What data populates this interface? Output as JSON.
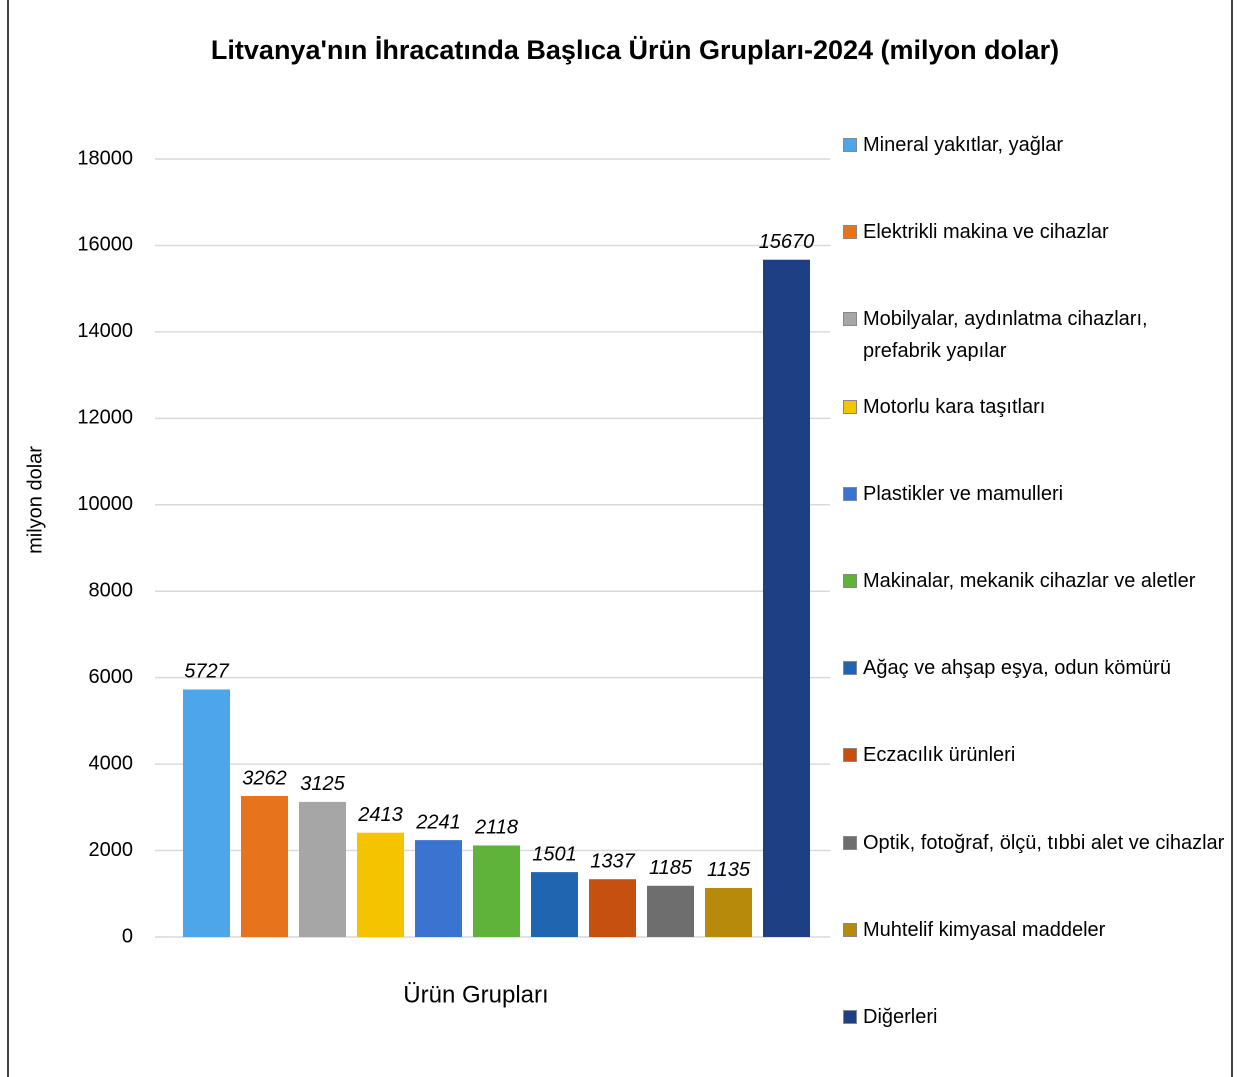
{
  "chart_data": {
    "type": "bar",
    "title": "Litvanya'nın İhracatında Başlıca Ürün Grupları-2024 (milyon dolar)",
    "y_label": "milyon dolar",
    "x_label": "Ürün Grupları",
    "categories": [
      null
    ],
    "series": [
      {
        "name": "Mineral yakıtlar, yağlar",
        "color": "#4da6ea",
        "values": [
          5727
        ]
      },
      {
        "name": "Elektrikli makina ve cihazlar",
        "color": "#e8731d",
        "values": [
          3262
        ]
      },
      {
        "name": "Mobilyalar, aydınlatma cihazları, prefabrik yapılar",
        "color": "#a6a6a6",
        "values": [
          3125
        ]
      },
      {
        "name": "Motorlu kara taşıtları",
        "color": "#f5c400",
        "values": [
          2413
        ]
      },
      {
        "name": "Plastikler ve mamulleri",
        "color": "#3a73d0",
        "values": [
          2241
        ]
      },
      {
        "name": "Makinalar, mekanik cihazlar ve aletler",
        "color": "#5fb33a",
        "values": [
          2118
        ]
      },
      {
        "name": "Ağaç ve ahşap eşya, odun kömürü",
        "color": "#1f65b0",
        "values": [
          1501
        ]
      },
      {
        "name": "Eczacılık ürünleri",
        "color": "#c5500f",
        "values": [
          1337
        ]
      },
      {
        "name": "Optik, fotoğraf, ölçü, tıbbi alet ve cihazlar",
        "color": "#6e6e6e",
        "values": [
          1185
        ]
      },
      {
        "name": "Muhtelif kimyasal maddeler",
        "color": "#b88a0c",
        "values": [
          1135
        ]
      },
      {
        "name": "Diğerleri",
        "color": "#1f3f85",
        "values": [
          15670
        ]
      }
    ],
    "ylim": [
      0,
      18000
    ],
    "yticks": [
      0,
      2000,
      4000,
      6000,
      8000,
      10000,
      12000,
      14000,
      16000,
      18000
    ],
    "grid": true,
    "legend": "right"
  }
}
